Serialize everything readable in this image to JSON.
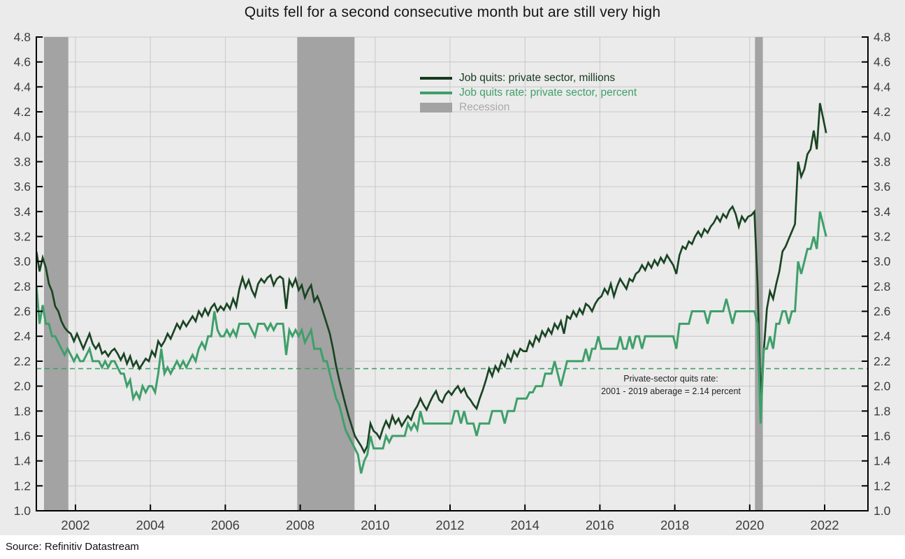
{
  "title": "Quits fell for a second consecutive month but are still very high",
  "source": "Source: Refinitiv Datastream",
  "legend": [
    {
      "label": "Job quits: private sector, millions",
      "color": "#16391e",
      "swatch": "line"
    },
    {
      "label": "Job quits rate: private sector, percent",
      "color": "#3f9f6a",
      "swatch": "line"
    },
    {
      "label": "Recession",
      "color": "#a3a3a3",
      "text_color": "#a8a8a8",
      "swatch": "box"
    }
  ],
  "annotation": {
    "line1": "Private-sector quits rate:",
    "line2": "2001 - 2019 aberage = 2.14 percent"
  },
  "colors": {
    "background": "#ebebeb",
    "gridline": "#c8c8c8",
    "axis": "#000000",
    "tick_label": "#3d3d3d",
    "quits_level_line": "#1a4423",
    "quits_rate_line": "#3f9f6a",
    "recession_band": "#a3a3a3",
    "average_line": "#3f9f6a",
    "footer_background": "#ffffff"
  },
  "chart_data": {
    "type": "line",
    "title": "Quits fell for a second consecutive month but are still very high",
    "xlabel": "",
    "ylabel": "",
    "grid": true,
    "legend_position": "upper center",
    "ylim": [
      1.0,
      4.8
    ],
    "y_tick_step": 0.2,
    "y_tick_labels": [
      "1.0",
      "1.2",
      "1.4",
      "1.6",
      "1.8",
      "2.0",
      "2.2",
      "2.4",
      "2.6",
      "2.8",
      "3.0",
      "3.2",
      "3.4",
      "3.6",
      "3.8",
      "4.0",
      "4.2",
      "4.4",
      "4.6",
      "4.8"
    ],
    "x_ticks": [
      2002,
      2004,
      2006,
      2008,
      2010,
      2012,
      2014,
      2016,
      2018,
      2020,
      2022
    ],
    "x_tick_labels": [
      "2002",
      "2004",
      "2006",
      "2008",
      "2010",
      "2012",
      "2014",
      "2016",
      "2018",
      "2020",
      "2022"
    ],
    "xlim": [
      2000.95,
      2023.25
    ],
    "x_start": 2000.9583,
    "x_step": 0.0833333,
    "frequency": "monthly",
    "average_line": {
      "value": 2.14,
      "note": "Private-sector quits rate: 2001 - 2019 aberage = 2.14 percent"
    },
    "recessions": [
      [
        2001.16,
        2001.81
      ],
      [
        2007.92,
        2009.45
      ],
      [
        2020.14,
        2020.35
      ]
    ],
    "series": [
      {
        "name": "Job quits: private sector, millions",
        "color": "#1a4423",
        "values": [
          3.08,
          2.92,
          3.03,
          2.95,
          2.82,
          2.76,
          2.64,
          2.6,
          2.52,
          2.47,
          2.44,
          2.42,
          2.36,
          2.42,
          2.36,
          2.3,
          2.36,
          2.42,
          2.34,
          2.3,
          2.34,
          2.26,
          2.28,
          2.24,
          2.28,
          2.3,
          2.26,
          2.21,
          2.26,
          2.18,
          2.24,
          2.16,
          2.2,
          2.14,
          2.18,
          2.22,
          2.2,
          2.28,
          2.24,
          2.36,
          2.32,
          2.36,
          2.42,
          2.38,
          2.44,
          2.5,
          2.46,
          2.52,
          2.48,
          2.52,
          2.56,
          2.52,
          2.6,
          2.56,
          2.62,
          2.57,
          2.63,
          2.66,
          2.6,
          2.64,
          2.61,
          2.66,
          2.62,
          2.7,
          2.64,
          2.78,
          2.87,
          2.79,
          2.85,
          2.77,
          2.72,
          2.82,
          2.86,
          2.83,
          2.87,
          2.89,
          2.81,
          2.86,
          2.88,
          2.86,
          2.62,
          2.85,
          2.8,
          2.86,
          2.77,
          2.81,
          2.71,
          2.77,
          2.81,
          2.68,
          2.72,
          2.66,
          2.58,
          2.5,
          2.42,
          2.3,
          2.16,
          2.05,
          1.95,
          1.85,
          1.76,
          1.68,
          1.6,
          1.56,
          1.52,
          1.47,
          1.52,
          1.7,
          1.64,
          1.62,
          1.58,
          1.66,
          1.72,
          1.67,
          1.76,
          1.7,
          1.74,
          1.68,
          1.72,
          1.76,
          1.73,
          1.8,
          1.84,
          1.9,
          1.85,
          1.81,
          1.87,
          1.92,
          1.96,
          1.89,
          1.87,
          1.93,
          1.96,
          1.93,
          1.97,
          2.0,
          1.95,
          1.98,
          1.92,
          1.89,
          1.85,
          1.82,
          1.9,
          1.97,
          2.05,
          2.14,
          2.08,
          2.16,
          2.12,
          2.2,
          2.16,
          2.25,
          2.2,
          2.28,
          2.24,
          2.3,
          2.28,
          2.28,
          2.36,
          2.32,
          2.4,
          2.36,
          2.44,
          2.4,
          2.46,
          2.42,
          2.5,
          2.46,
          2.52,
          2.42,
          2.56,
          2.54,
          2.6,
          2.56,
          2.62,
          2.58,
          2.66,
          2.64,
          2.6,
          2.66,
          2.7,
          2.72,
          2.78,
          2.74,
          2.82,
          2.72,
          2.8,
          2.86,
          2.82,
          2.78,
          2.86,
          2.84,
          2.9,
          2.92,
          2.97,
          2.93,
          2.99,
          2.95,
          3.01,
          2.97,
          3.03,
          2.99,
          3.05,
          3.01,
          2.97,
          2.9,
          3.05,
          3.12,
          3.1,
          3.16,
          3.14,
          3.2,
          3.24,
          3.2,
          3.26,
          3.23,
          3.28,
          3.31,
          3.36,
          3.32,
          3.38,
          3.35,
          3.41,
          3.44,
          3.38,
          3.28,
          3.36,
          3.32,
          3.36,
          3.37,
          3.4,
          2.82,
          1.9,
          2.28,
          2.62,
          2.76,
          2.7,
          2.82,
          2.92,
          3.08,
          3.12,
          3.18,
          3.24,
          3.3,
          3.8,
          3.68,
          3.74,
          3.86,
          3.9,
          4.05,
          3.9,
          4.27,
          4.15,
          4.03
        ]
      },
      {
        "name": "Job quits rate: private sector, percent",
        "color": "#3f9f6a",
        "values": [
          2.8,
          2.5,
          2.65,
          2.5,
          2.5,
          2.4,
          2.4,
          2.35,
          2.3,
          2.25,
          2.3,
          2.25,
          2.2,
          2.25,
          2.2,
          2.2,
          2.25,
          2.3,
          2.2,
          2.2,
          2.2,
          2.15,
          2.2,
          2.15,
          2.2,
          2.2,
          2.15,
          2.1,
          2.1,
          2.0,
          2.05,
          1.9,
          1.95,
          1.9,
          2.0,
          1.95,
          2.0,
          2.0,
          1.95,
          2.1,
          2.3,
          2.1,
          2.15,
          2.1,
          2.15,
          2.2,
          2.15,
          2.2,
          2.15,
          2.2,
          2.25,
          2.2,
          2.3,
          2.35,
          2.3,
          2.4,
          2.4,
          2.6,
          2.45,
          2.4,
          2.4,
          2.45,
          2.4,
          2.45,
          2.4,
          2.5,
          2.5,
          2.5,
          2.5,
          2.45,
          2.4,
          2.5,
          2.5,
          2.5,
          2.45,
          2.5,
          2.45,
          2.5,
          2.5,
          2.5,
          2.25,
          2.45,
          2.4,
          2.45,
          2.4,
          2.45,
          2.35,
          2.4,
          2.45,
          2.3,
          2.3,
          2.3,
          2.2,
          2.2,
          2.1,
          2.0,
          1.9,
          1.85,
          1.75,
          1.65,
          1.6,
          1.55,
          1.5,
          1.45,
          1.3,
          1.4,
          1.45,
          1.6,
          1.5,
          1.5,
          1.5,
          1.5,
          1.6,
          1.55,
          1.6,
          1.6,
          1.6,
          1.6,
          1.6,
          1.7,
          1.65,
          1.7,
          1.65,
          1.8,
          1.7,
          1.7,
          1.7,
          1.7,
          1.7,
          1.7,
          1.7,
          1.7,
          1.7,
          1.7,
          1.8,
          1.8,
          1.7,
          1.8,
          1.7,
          1.7,
          1.7,
          1.6,
          1.7,
          1.7,
          1.7,
          1.7,
          1.8,
          1.8,
          1.8,
          1.8,
          1.7,
          1.8,
          1.8,
          1.8,
          1.9,
          1.9,
          1.9,
          1.9,
          1.95,
          1.95,
          2.0,
          2.0,
          2.0,
          2.1,
          2.1,
          2.1,
          2.2,
          2.1,
          2.0,
          2.1,
          2.2,
          2.2,
          2.2,
          2.2,
          2.2,
          2.2,
          2.3,
          2.2,
          2.3,
          2.3,
          2.4,
          2.3,
          2.3,
          2.3,
          2.3,
          2.3,
          2.3,
          2.4,
          2.3,
          2.3,
          2.4,
          2.3,
          2.4,
          2.4,
          2.3,
          2.4,
          2.4,
          2.4,
          2.4,
          2.4,
          2.4,
          2.4,
          2.4,
          2.4,
          2.4,
          2.3,
          2.5,
          2.5,
          2.5,
          2.5,
          2.6,
          2.6,
          2.6,
          2.6,
          2.6,
          2.5,
          2.6,
          2.6,
          2.6,
          2.6,
          2.6,
          2.7,
          2.6,
          2.5,
          2.6,
          2.6,
          2.6,
          2.6,
          2.6,
          2.6,
          2.6,
          2.5,
          1.7,
          2.3,
          2.3,
          2.4,
          2.3,
          2.5,
          2.5,
          2.6,
          2.6,
          2.5,
          2.6,
          2.6,
          3.0,
          2.9,
          3.0,
          3.1,
          3.1,
          3.2,
          3.1,
          3.4,
          3.3,
          3.2
        ]
      }
    ]
  }
}
